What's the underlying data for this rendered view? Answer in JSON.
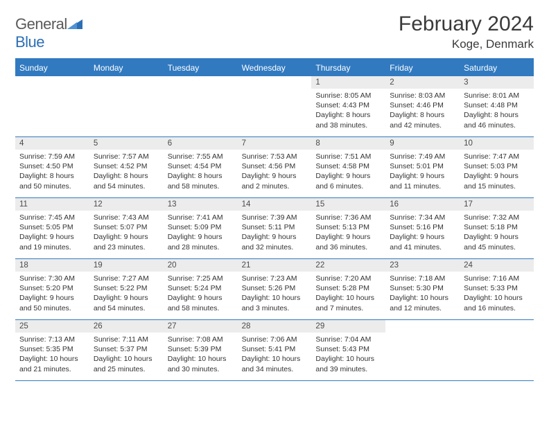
{
  "logo": {
    "word1": "General",
    "word2": "Blue"
  },
  "title": "February 2024",
  "location": "Koge, Denmark",
  "colors": {
    "brand_blue": "#317ac0",
    "header_gray": "#ececec",
    "text": "#333333",
    "title_text": "#3a3a3a"
  },
  "weekdays": [
    "Sunday",
    "Monday",
    "Tuesday",
    "Wednesday",
    "Thursday",
    "Friday",
    "Saturday"
  ],
  "leading_blanks": 4,
  "days": [
    {
      "n": "1",
      "sunrise": "8:05 AM",
      "sunset": "4:43 PM",
      "dl1": "Daylight: 8 hours",
      "dl2": "and 38 minutes."
    },
    {
      "n": "2",
      "sunrise": "8:03 AM",
      "sunset": "4:46 PM",
      "dl1": "Daylight: 8 hours",
      "dl2": "and 42 minutes."
    },
    {
      "n": "3",
      "sunrise": "8:01 AM",
      "sunset": "4:48 PM",
      "dl1": "Daylight: 8 hours",
      "dl2": "and 46 minutes."
    },
    {
      "n": "4",
      "sunrise": "7:59 AM",
      "sunset": "4:50 PM",
      "dl1": "Daylight: 8 hours",
      "dl2": "and 50 minutes."
    },
    {
      "n": "5",
      "sunrise": "7:57 AM",
      "sunset": "4:52 PM",
      "dl1": "Daylight: 8 hours",
      "dl2": "and 54 minutes."
    },
    {
      "n": "6",
      "sunrise": "7:55 AM",
      "sunset": "4:54 PM",
      "dl1": "Daylight: 8 hours",
      "dl2": "and 58 minutes."
    },
    {
      "n": "7",
      "sunrise": "7:53 AM",
      "sunset": "4:56 PM",
      "dl1": "Daylight: 9 hours",
      "dl2": "and 2 minutes."
    },
    {
      "n": "8",
      "sunrise": "7:51 AM",
      "sunset": "4:58 PM",
      "dl1": "Daylight: 9 hours",
      "dl2": "and 6 minutes."
    },
    {
      "n": "9",
      "sunrise": "7:49 AM",
      "sunset": "5:01 PM",
      "dl1": "Daylight: 9 hours",
      "dl2": "and 11 minutes."
    },
    {
      "n": "10",
      "sunrise": "7:47 AM",
      "sunset": "5:03 PM",
      "dl1": "Daylight: 9 hours",
      "dl2": "and 15 minutes."
    },
    {
      "n": "11",
      "sunrise": "7:45 AM",
      "sunset": "5:05 PM",
      "dl1": "Daylight: 9 hours",
      "dl2": "and 19 minutes."
    },
    {
      "n": "12",
      "sunrise": "7:43 AM",
      "sunset": "5:07 PM",
      "dl1": "Daylight: 9 hours",
      "dl2": "and 23 minutes."
    },
    {
      "n": "13",
      "sunrise": "7:41 AM",
      "sunset": "5:09 PM",
      "dl1": "Daylight: 9 hours",
      "dl2": "and 28 minutes."
    },
    {
      "n": "14",
      "sunrise": "7:39 AM",
      "sunset": "5:11 PM",
      "dl1": "Daylight: 9 hours",
      "dl2": "and 32 minutes."
    },
    {
      "n": "15",
      "sunrise": "7:36 AM",
      "sunset": "5:13 PM",
      "dl1": "Daylight: 9 hours",
      "dl2": "and 36 minutes."
    },
    {
      "n": "16",
      "sunrise": "7:34 AM",
      "sunset": "5:16 PM",
      "dl1": "Daylight: 9 hours",
      "dl2": "and 41 minutes."
    },
    {
      "n": "17",
      "sunrise": "7:32 AM",
      "sunset": "5:18 PM",
      "dl1": "Daylight: 9 hours",
      "dl2": "and 45 minutes."
    },
    {
      "n": "18",
      "sunrise": "7:30 AM",
      "sunset": "5:20 PM",
      "dl1": "Daylight: 9 hours",
      "dl2": "and 50 minutes."
    },
    {
      "n": "19",
      "sunrise": "7:27 AM",
      "sunset": "5:22 PM",
      "dl1": "Daylight: 9 hours",
      "dl2": "and 54 minutes."
    },
    {
      "n": "20",
      "sunrise": "7:25 AM",
      "sunset": "5:24 PM",
      "dl1": "Daylight: 9 hours",
      "dl2": "and 58 minutes."
    },
    {
      "n": "21",
      "sunrise": "7:23 AM",
      "sunset": "5:26 PM",
      "dl1": "Daylight: 10 hours",
      "dl2": "and 3 minutes."
    },
    {
      "n": "22",
      "sunrise": "7:20 AM",
      "sunset": "5:28 PM",
      "dl1": "Daylight: 10 hours",
      "dl2": "and 7 minutes."
    },
    {
      "n": "23",
      "sunrise": "7:18 AM",
      "sunset": "5:30 PM",
      "dl1": "Daylight: 10 hours",
      "dl2": "and 12 minutes."
    },
    {
      "n": "24",
      "sunrise": "7:16 AM",
      "sunset": "5:33 PM",
      "dl1": "Daylight: 10 hours",
      "dl2": "and 16 minutes."
    },
    {
      "n": "25",
      "sunrise": "7:13 AM",
      "sunset": "5:35 PM",
      "dl1": "Daylight: 10 hours",
      "dl2": "and 21 minutes."
    },
    {
      "n": "26",
      "sunrise": "7:11 AM",
      "sunset": "5:37 PM",
      "dl1": "Daylight: 10 hours",
      "dl2": "and 25 minutes."
    },
    {
      "n": "27",
      "sunrise": "7:08 AM",
      "sunset": "5:39 PM",
      "dl1": "Daylight: 10 hours",
      "dl2": "and 30 minutes."
    },
    {
      "n": "28",
      "sunrise": "7:06 AM",
      "sunset": "5:41 PM",
      "dl1": "Daylight: 10 hours",
      "dl2": "and 34 minutes."
    },
    {
      "n": "29",
      "sunrise": "7:04 AM",
      "sunset": "5:43 PM",
      "dl1": "Daylight: 10 hours",
      "dl2": "and 39 minutes."
    }
  ],
  "trailing_blanks": 2,
  "labels": {
    "sunrise_prefix": "Sunrise: ",
    "sunset_prefix": "Sunset: "
  }
}
